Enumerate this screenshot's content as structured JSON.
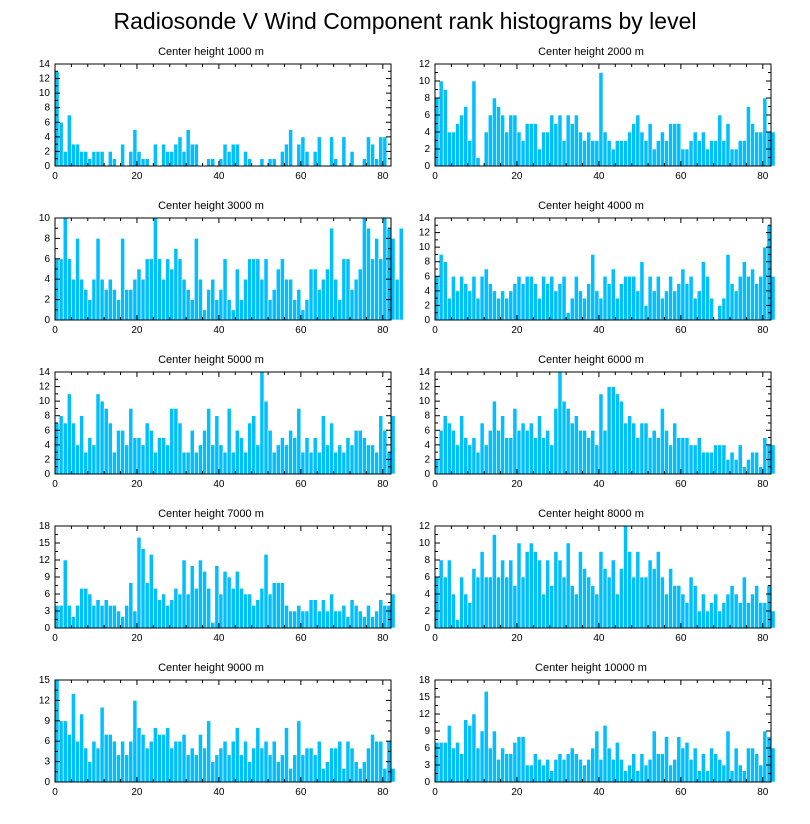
{
  "title": "Radiosonde V Wind Component rank histograms by level",
  "style": {
    "bar_color": "#00bfff",
    "bar_edge": "#ffffff",
    "axis_color": "#000000"
  },
  "chart_data": [
    {
      "type": "bar",
      "title": "Center height 1000 m",
      "xlim": [
        0,
        82
      ],
      "xticks": [
        0,
        20,
        40,
        60,
        80
      ],
      "ylim": [
        0,
        14
      ],
      "yticks": [
        0,
        2,
        4,
        6,
        8,
        10,
        12,
        14
      ],
      "x_start": 0,
      "values": [
        13,
        6,
        2,
        7,
        3,
        3,
        2,
        2,
        1,
        2,
        2,
        2,
        0,
        2,
        1,
        0,
        3,
        0,
        2,
        5,
        2,
        1,
        1,
        0,
        3,
        0,
        3,
        2,
        2,
        3,
        4,
        2,
        5,
        3,
        3,
        0,
        0,
        1,
        1,
        0,
        1,
        3,
        2,
        3,
        3,
        0,
        2,
        1,
        0,
        0,
        1,
        0,
        1,
        1,
        0,
        2,
        3,
        5,
        0,
        3,
        4,
        2,
        0,
        2,
        4,
        0,
        0,
        4,
        1,
        0,
        4,
        0,
        2,
        0,
        0,
        1,
        4,
        3,
        1,
        4,
        4
      ]
    },
    {
      "type": "bar",
      "title": "Center height 2000 m",
      "xlim": [
        0,
        82
      ],
      "xticks": [
        0,
        20,
        40,
        60,
        80
      ],
      "ylim": [
        0,
        12
      ],
      "yticks": [
        0,
        2,
        4,
        6,
        8,
        10,
        12
      ],
      "x_start": 0,
      "values": [
        8,
        10,
        9,
        4,
        4,
        5,
        6,
        7,
        3,
        10,
        1,
        0,
        4,
        6,
        8,
        7,
        6,
        4,
        6,
        6,
        4,
        3,
        5,
        5,
        5,
        2,
        4,
        4,
        6,
        5,
        6,
        3,
        6,
        5,
        6,
        4,
        3,
        4,
        3,
        3,
        11,
        4,
        3,
        2,
        3,
        3,
        3,
        4,
        5,
        6,
        4,
        3,
        5,
        2,
        3,
        4,
        3,
        5,
        5,
        5,
        2,
        2,
        3,
        4,
        3,
        4,
        2,
        3,
        3,
        6,
        3,
        5,
        2,
        2,
        3,
        3,
        7,
        5,
        4,
        4,
        8,
        4,
        4
      ]
    },
    {
      "type": "bar",
      "title": "Center height 3000 m",
      "xlim": [
        0,
        82
      ],
      "xticks": [
        0,
        20,
        40,
        60,
        80
      ],
      "ylim": [
        0,
        10
      ],
      "yticks": [
        0,
        2,
        4,
        6,
        8,
        10
      ],
      "x_start": 0,
      "values": [
        6,
        6,
        10,
        6,
        4,
        8,
        4,
        3,
        2,
        4,
        8,
        4,
        3,
        4,
        3,
        2,
        8,
        3,
        3,
        4,
        5,
        4,
        6,
        6,
        10,
        6,
        4,
        6,
        5,
        7,
        6,
        4,
        3,
        2,
        8,
        4,
        1,
        3,
        4,
        2,
        3,
        6,
        2,
        1,
        5,
        2,
        4,
        6,
        6,
        6,
        4,
        6,
        2,
        3,
        5,
        6,
        4,
        4,
        2,
        3,
        1,
        2,
        5,
        5,
        3,
        4,
        5,
        9,
        4,
        2,
        6,
        6,
        3,
        4,
        5,
        10,
        9,
        6,
        8,
        6,
        10,
        9,
        8,
        4,
        9
      ]
    },
    {
      "type": "bar",
      "title": "Center height 4000 m",
      "xlim": [
        0,
        82
      ],
      "xticks": [
        0,
        20,
        40,
        60,
        80
      ],
      "ylim": [
        0,
        14
      ],
      "yticks": [
        0,
        2,
        4,
        6,
        8,
        10,
        12,
        14
      ],
      "x_start": 0,
      "values": [
        6,
        9,
        8,
        3,
        6,
        4,
        6,
        5,
        4,
        6,
        3,
        6,
        7,
        5,
        4,
        3,
        4,
        3,
        4,
        5,
        6,
        5,
        6,
        6,
        5,
        3,
        6,
        5,
        6,
        4,
        5,
        6,
        1,
        3,
        6,
        4,
        3,
        5,
        9,
        4,
        3,
        6,
        5,
        7,
        3,
        5,
        6,
        6,
        6,
        4,
        8,
        2,
        6,
        4,
        6,
        3,
        4,
        6,
        4,
        5,
        7,
        5,
        6,
        3,
        4,
        8,
        6,
        3,
        0,
        2,
        3,
        9,
        5,
        4,
        6,
        8,
        6,
        7,
        5,
        6,
        10,
        13,
        6
      ]
    },
    {
      "type": "bar",
      "title": "Center height 5000 m",
      "xlim": [
        0,
        82
      ],
      "xticks": [
        0,
        20,
        40,
        60,
        80
      ],
      "ylim": [
        0,
        14
      ],
      "yticks": [
        0,
        2,
        4,
        6,
        8,
        10,
        12,
        14
      ],
      "x_start": 0,
      "values": [
        7,
        8,
        7,
        11,
        7,
        4,
        8,
        3,
        5,
        4,
        11,
        10,
        9,
        7,
        3,
        6,
        6,
        4,
        9,
        5,
        5,
        4,
        7,
        6,
        3,
        5,
        5,
        4,
        9,
        9,
        7,
        3,
        3,
        6,
        3,
        4,
        6,
        9,
        4,
        8,
        4,
        3,
        9,
        3,
        6,
        5,
        3,
        7,
        8,
        4,
        14,
        10,
        6,
        3,
        4,
        5,
        4,
        6,
        5,
        9,
        3,
        5,
        3,
        5,
        3,
        8,
        4,
        7,
        3,
        4,
        3,
        5,
        4,
        6,
        6,
        5,
        4,
        4,
        3,
        8,
        6,
        3,
        8
      ]
    },
    {
      "type": "bar",
      "title": "Center height 6000 m",
      "xlim": [
        0,
        82
      ],
      "xticks": [
        0,
        20,
        40,
        60,
        80
      ],
      "ylim": [
        0,
        14
      ],
      "yticks": [
        0,
        2,
        4,
        6,
        8,
        10,
        12,
        14
      ],
      "x_start": 0,
      "values": [
        2,
        6,
        8,
        7,
        6,
        4,
        8,
        5,
        4,
        5,
        3,
        7,
        4,
        6,
        10,
        6,
        8,
        5,
        5,
        9,
        6,
        7,
        6,
        7,
        5,
        8,
        5,
        6,
        4,
        9,
        14,
        10,
        9,
        7,
        8,
        6,
        6,
        5,
        6,
        4,
        11,
        6,
        12,
        12,
        11,
        10,
        7,
        8,
        7,
        5,
        7,
        7,
        5,
        6,
        5,
        9,
        6,
        4,
        7,
        5,
        5,
        5,
        4,
        4,
        5,
        3,
        3,
        3,
        4,
        4,
        4,
        2,
        3,
        2,
        4,
        1,
        2,
        3,
        3,
        1,
        5,
        4,
        4
      ]
    },
    {
      "type": "bar",
      "title": "Center height 7000 m",
      "xlim": [
        0,
        82
      ],
      "xticks": [
        0,
        20,
        40,
        60,
        80
      ],
      "ylim": [
        0,
        18
      ],
      "yticks": [
        0,
        3,
        6,
        9,
        12,
        15,
        18
      ],
      "x_start": 0,
      "values": [
        4,
        4,
        12,
        4,
        2,
        4,
        7,
        7,
        6,
        4,
        5,
        4,
        5,
        4,
        4,
        3,
        2,
        4,
        8,
        3,
        16,
        14,
        8,
        13,
        7,
        5,
        6,
        4,
        5,
        7,
        6,
        12,
        6,
        11,
        7,
        12,
        10,
        7,
        1,
        11,
        6,
        10,
        9,
        7,
        10,
        7,
        6,
        6,
        4,
        5,
        7,
        13,
        6,
        8,
        8,
        8,
        4,
        3,
        3,
        4,
        3,
        3,
        5,
        5,
        3,
        5,
        3,
        6,
        3,
        3,
        4,
        2,
        5,
        4,
        3,
        2,
        4,
        2,
        3,
        5,
        4,
        4,
        6
      ]
    },
    {
      "type": "bar",
      "title": "Center height 8000 m",
      "xlim": [
        0,
        82
      ],
      "xticks": [
        0,
        20,
        40,
        60,
        80
      ],
      "ylim": [
        0,
        12
      ],
      "yticks": [
        0,
        2,
        4,
        6,
        8,
        10,
        12
      ],
      "x_start": 0,
      "values": [
        6,
        8,
        6,
        8,
        4,
        1,
        6,
        4,
        3,
        7,
        6,
        9,
        6,
        6,
        11,
        6,
        8,
        6,
        8,
        5,
        10,
        6,
        9,
        10,
        9,
        8,
        4,
        8,
        5,
        9,
        8,
        6,
        10,
        5,
        4,
        9,
        7,
        6,
        5,
        4,
        9,
        7,
        6,
        8,
        4,
        7,
        12,
        9,
        6,
        9,
        6,
        6,
        8,
        7,
        9,
        6,
        4,
        7,
        5,
        5,
        4,
        3,
        6,
        5,
        2,
        4,
        2,
        3,
        4,
        2,
        3,
        4,
        5,
        4,
        3,
        6,
        3,
        4,
        5,
        3,
        3,
        5,
        2
      ]
    },
    {
      "type": "bar",
      "title": "Center height 9000 m",
      "xlim": [
        0,
        82
      ],
      "xticks": [
        0,
        20,
        40,
        60,
        80
      ],
      "ylim": [
        0,
        15
      ],
      "yticks": [
        0,
        3,
        6,
        9,
        12,
        15
      ],
      "x_start": 0,
      "values": [
        15,
        9,
        9,
        7,
        13,
        6,
        10,
        5,
        3,
        6,
        5,
        11,
        7,
        7,
        6,
        4,
        6,
        4,
        6,
        12,
        8,
        7,
        5,
        6,
        8,
        7,
        7,
        8,
        5,
        6,
        6,
        7,
        4,
        5,
        4,
        7,
        5,
        9,
        3,
        4,
        5,
        6,
        4,
        6,
        8,
        4,
        6,
        3,
        5,
        8,
        5,
        6,
        4,
        6,
        3,
        4,
        8,
        2,
        4,
        9,
        4,
        5,
        5,
        4,
        6,
        2,
        3,
        5,
        5,
        6,
        2,
        6,
        5,
        3,
        2,
        3,
        5,
        7,
        6,
        6,
        2,
        6,
        2
      ]
    },
    {
      "type": "bar",
      "title": "Center height 10000 m",
      "xlim": [
        0,
        82
      ],
      "xticks": [
        0,
        20,
        40,
        60,
        80
      ],
      "ylim": [
        0,
        18
      ],
      "yticks": [
        0,
        3,
        6,
        9,
        12,
        15,
        18
      ],
      "x_start": 0,
      "values": [
        7,
        7,
        7,
        10,
        6,
        7,
        5,
        11,
        10,
        12,
        6,
        9,
        16,
        6,
        9,
        4,
        6,
        5,
        5,
        7,
        8,
        8,
        3,
        3,
        5,
        4,
        3,
        4,
        2,
        4,
        5,
        4,
        5,
        6,
        5,
        4,
        3,
        4,
        6,
        9,
        4,
        10,
        6,
        4,
        7,
        4,
        2,
        3,
        5,
        2,
        5,
        3,
        4,
        9,
        5,
        5,
        8,
        3,
        4,
        8,
        6,
        7,
        4,
        6,
        2,
        5,
        2,
        6,
        5,
        4,
        3,
        9,
        2,
        6,
        3,
        2,
        6,
        6,
        5,
        3,
        9,
        8,
        6
      ]
    }
  ]
}
